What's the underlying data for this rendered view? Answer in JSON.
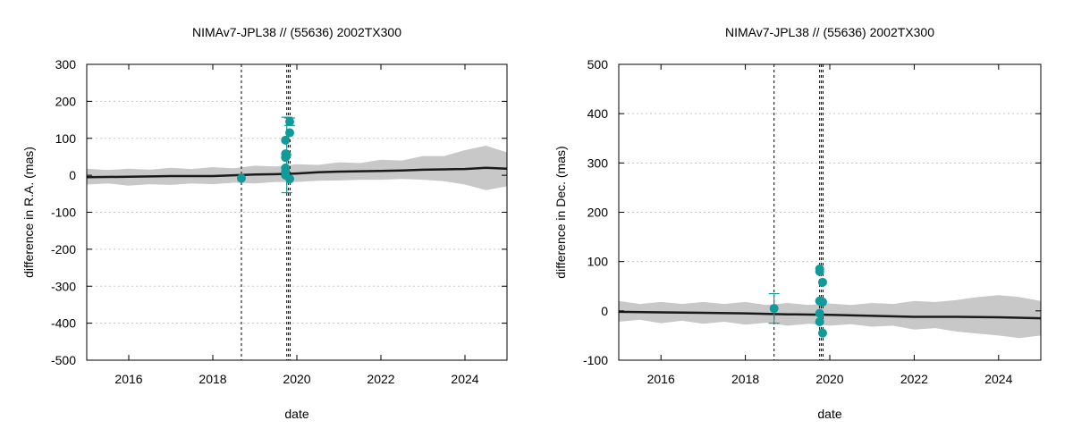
{
  "chart_data": [
    {
      "type": "scatter",
      "title": "NIMAv7-JPL38 // (55636) 2002TX300",
      "xlabel": "date",
      "ylabel": "difference in R.A. (mas)",
      "xlim": [
        "2015-01-01",
        "2025-01-01"
      ],
      "ylim": [
        -500,
        300
      ],
      "xticks": [
        "2016",
        "2018",
        "2020",
        "2022",
        "2024"
      ],
      "yticks": [
        -500,
        -400,
        -300,
        -200,
        -100,
        0,
        100,
        200,
        300
      ],
      "grid": true,
      "uncertainty_band": {
        "x": [
          2015.0,
          2015.5,
          2016.0,
          2016.5,
          2017.0,
          2017.5,
          2018.0,
          2018.5,
          2019.0,
          2019.5,
          2020.0,
          2020.5,
          2021.0,
          2021.5,
          2022.0,
          2022.5,
          2023.0,
          2023.5,
          2024.0,
          2024.5,
          2025.0
        ],
        "upper": [
          18,
          14,
          18,
          15,
          20,
          17,
          22,
          19,
          26,
          24,
          30,
          28,
          35,
          33,
          42,
          40,
          52,
          52,
          68,
          80,
          62
        ],
        "lower": [
          -25,
          -22,
          -28,
          -24,
          -26,
          -22,
          -24,
          -20,
          -22,
          -18,
          -18,
          -15,
          -14,
          -12,
          -12,
          -10,
          -12,
          -16,
          -25,
          -40,
          -30
        ]
      },
      "prediction_line": {
        "x": [
          2015.0,
          2016.0,
          2017.0,
          2018.0,
          2018.5,
          2019.0,
          2019.5,
          2020.0,
          2020.5,
          2021.0,
          2021.5,
          2022.0,
          2022.5,
          2023.0,
          2023.5,
          2024.0,
          2024.5,
          2025.0
        ],
        "y": [
          -5,
          -4,
          -2,
          -2,
          0,
          2,
          3,
          5,
          8,
          10,
          11,
          12,
          13,
          15,
          16,
          17,
          20,
          18
        ]
      },
      "vertical_lines": [
        2018.68,
        2019.76,
        2019.8,
        2019.84
      ],
      "points": [
        {
          "x": 2018.68,
          "y": -8,
          "err": 0
        },
        {
          "x": 2019.73,
          "y": 95,
          "err": 0
        },
        {
          "x": 2019.73,
          "y": 58,
          "err": 0
        },
        {
          "x": 2019.73,
          "y": 48,
          "err": 0
        },
        {
          "x": 2019.73,
          "y": 20,
          "err": 0
        },
        {
          "x": 2019.73,
          "y": 10,
          "err": 0
        },
        {
          "x": 2019.73,
          "y": 0,
          "err": 0
        },
        {
          "x": 2019.76,
          "y": 55,
          "err": 102
        },
        {
          "x": 2019.83,
          "y": 145,
          "err": 10
        },
        {
          "x": 2019.83,
          "y": 115,
          "err": 0
        },
        {
          "x": 2019.83,
          "y": -10,
          "err": 0
        }
      ]
    },
    {
      "type": "scatter",
      "title": "NIMAv7-JPL38 // (55636) 2002TX300",
      "xlabel": "date",
      "ylabel": "difference in Dec. (mas)",
      "xlim": [
        "2015-01-01",
        "2025-01-01"
      ],
      "ylim": [
        -100,
        500
      ],
      "xticks": [
        "2016",
        "2018",
        "2020",
        "2022",
        "2024"
      ],
      "yticks": [
        -100,
        0,
        100,
        200,
        300,
        400,
        500
      ],
      "grid": true,
      "uncertainty_band": {
        "x": [
          2015.0,
          2015.5,
          2016.0,
          2016.5,
          2017.0,
          2017.5,
          2018.0,
          2018.5,
          2019.0,
          2019.5,
          2020.0,
          2020.5,
          2021.0,
          2021.5,
          2022.0,
          2022.5,
          2023.0,
          2023.5,
          2024.0,
          2024.5,
          2025.0
        ],
        "upper": [
          20,
          14,
          18,
          14,
          18,
          14,
          18,
          12,
          16,
          12,
          15,
          12,
          16,
          14,
          20,
          18,
          22,
          28,
          32,
          28,
          20
        ],
        "lower": [
          -22,
          -18,
          -25,
          -20,
          -26,
          -22,
          -28,
          -24,
          -30,
          -26,
          -30,
          -27,
          -32,
          -30,
          -38,
          -35,
          -42,
          -46,
          -50,
          -55,
          -50
        ]
      },
      "prediction_line": {
        "x": [
          2015.0,
          2016.0,
          2017.0,
          2018.0,
          2019.0,
          2020.0,
          2021.0,
          2022.0,
          2023.0,
          2024.0,
          2025.0
        ],
        "y": [
          -2,
          -3,
          -4,
          -5,
          -7,
          -8,
          -10,
          -12,
          -12,
          -13,
          -15
        ]
      },
      "vertical_lines": [
        2018.68,
        2019.76,
        2019.8,
        2019.84
      ],
      "points": [
        {
          "x": 2018.68,
          "y": 5,
          "err": 30
        },
        {
          "x": 2019.76,
          "y": 85,
          "err": 0
        },
        {
          "x": 2019.76,
          "y": 80,
          "err": 0
        },
        {
          "x": 2019.76,
          "y": 20,
          "err": 0
        },
        {
          "x": 2019.76,
          "y": -5,
          "err": 0
        },
        {
          "x": 2019.76,
          "y": -22,
          "err": 0
        },
        {
          "x": 2019.83,
          "y": 58,
          "err": 0
        },
        {
          "x": 2019.83,
          "y": 18,
          "err": 0
        },
        {
          "x": 2019.83,
          "y": -45,
          "err": 0
        }
      ]
    }
  ],
  "colors": {
    "points": "#119a9a",
    "band": "#c8c8c8",
    "line": "#1a1a1a",
    "grid": "#c8c8c8"
  }
}
